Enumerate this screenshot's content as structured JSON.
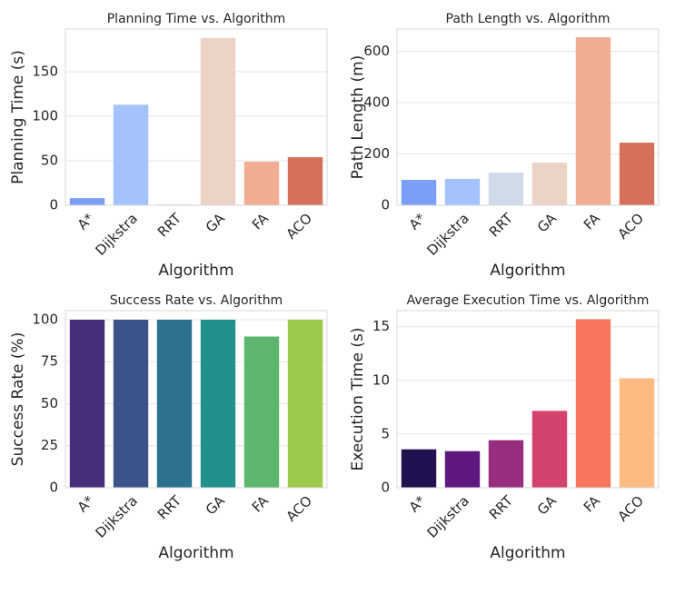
{
  "chart_data": [
    {
      "type": "bar",
      "title": "Planning Time vs. Algorithm",
      "xlabel": "Algorithm",
      "ylabel": "Planning Time (s)",
      "categories": [
        "A*",
        "Dijkstra",
        "RRT",
        "GA",
        "FA",
        "ACO"
      ],
      "values": [
        8,
        113,
        1,
        188,
        49,
        54
      ],
      "colors": [
        "#7b9ff9",
        "#a3c2fe",
        "#d1dbe9",
        "#ebd3c6",
        "#f0ad92",
        "#d6705b"
      ],
      "ylim": [
        0,
        198
      ],
      "yticks": [
        0,
        50,
        100,
        150
      ],
      "grid": true
    },
    {
      "type": "bar",
      "title": "Path Length vs. Algorithm",
      "xlabel": "Algorithm",
      "ylabel": "Path Length (m)",
      "categories": [
        "A*",
        "Dijkstra",
        "RRT",
        "GA",
        "FA",
        "ACO"
      ],
      "values": [
        99,
        103,
        127,
        166,
        655,
        244
      ],
      "colors": [
        "#7b9ff9",
        "#a3c2fe",
        "#d1dbe9",
        "#ebd3c6",
        "#f0ad92",
        "#d6705b"
      ],
      "ylim": [
        0,
        687
      ],
      "yticks": [
        0,
        200,
        400,
        600
      ],
      "grid": true
    },
    {
      "type": "bar",
      "title": "Success Rate vs. Algorithm",
      "xlabel": "Algorithm",
      "ylabel": "Success Rate (%)",
      "categories": [
        "A*",
        "Dijkstra",
        "RRT",
        "GA",
        "FA",
        "ACO"
      ],
      "values": [
        100,
        100,
        100,
        100,
        90,
        100
      ],
      "colors": [
        "#472d7b",
        "#3b528b",
        "#2c728e",
        "#21918c",
        "#5cb66e",
        "#9dc94a"
      ],
      "ylim": [
        0,
        105.4
      ],
      "yticks": [
        0,
        25,
        50,
        75,
        100
      ],
      "grid": true
    },
    {
      "type": "bar",
      "title": "Average Execution Time vs. Algorithm",
      "xlabel": "Algorithm",
      "ylabel": "Execution Time (s)",
      "categories": [
        "A*",
        "Dijkstra",
        "RRT",
        "GA",
        "FA",
        "ACO"
      ],
      "values": [
        3.58,
        3.41,
        4.43,
        7.16,
        15.7,
        10.2
      ],
      "colors": [
        "#221150",
        "#5f187f",
        "#982d80",
        "#d3436e",
        "#f8765c",
        "#febb81"
      ],
      "ylim": [
        0,
        16.5
      ],
      "yticks": [
        0,
        5,
        10,
        15
      ],
      "grid": true
    }
  ]
}
